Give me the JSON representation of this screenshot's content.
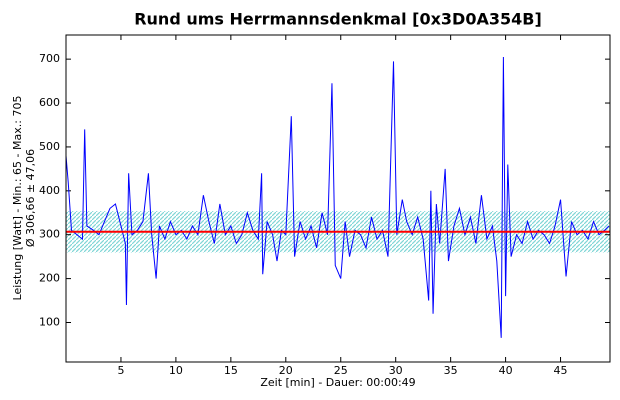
{
  "chart_data": {
    "type": "line",
    "title": "Rund ums Herrmannsdenkmal [0x3D0A354B]",
    "x_label": "Zeit [min] - Dauer: 00:00:49",
    "y_label": "Leistung [Watt] - Min.: 65 - Max.: 705",
    "y_label2": "Ø 306,66 ± 47,06",
    "mean": 306.66,
    "std": 47.06,
    "mean_color": "#ff0000",
    "band_color": "#7fd6d6",
    "color": "#0000ff",
    "xlim": [
      0,
      49.5
    ],
    "ylim": [
      10,
      755
    ],
    "xticks": [
      5,
      10,
      15,
      20,
      25,
      30,
      35,
      40,
      45
    ],
    "yticks": [
      100,
      200,
      300,
      400,
      500,
      600,
      700
    ],
    "x": [
      0,
      0.2,
      0.5,
      1,
      1.5,
      1.7,
      1.9,
      2.5,
      3,
      3.5,
      4,
      4.5,
      5,
      5.4,
      5.5,
      5.7,
      6,
      6.5,
      7,
      7.5,
      7.8,
      8.2,
      8.5,
      9,
      9.5,
      10,
      10.5,
      11,
      11.5,
      12,
      12.5,
      13,
      13.5,
      14,
      14.5,
      15,
      15.5,
      16,
      16.5,
      17,
      17.5,
      17.8,
      17.9,
      18.3,
      18.8,
      19.2,
      19.6,
      20,
      20.5,
      20.8,
      21.3,
      21.8,
      22.3,
      22.8,
      23.3,
      23.8,
      24.2,
      24.5,
      25,
      25.4,
      25.8,
      26.3,
      26.8,
      27.3,
      27.8,
      28.3,
      28.8,
      29.3,
      29.8,
      30.1,
      30.6,
      31,
      31.5,
      32,
      32.5,
      33,
      33.2,
      33.4,
      33.7,
      34,
      34.5,
      34.8,
      35.3,
      35.8,
      36.3,
      36.8,
      37.3,
      37.8,
      38.3,
      38.8,
      39.2,
      39.6,
      39.8,
      40,
      40.2,
      40.5,
      41,
      41.5,
      42,
      42.5,
      43,
      43.5,
      44,
      44.5,
      45,
      45.5,
      46,
      46.5,
      47,
      47.5,
      48,
      48.5,
      49,
      49.4
    ],
    "values": [
      480,
      420,
      310,
      300,
      290,
      540,
      320,
      310,
      300,
      330,
      360,
      370,
      320,
      280,
      140,
      440,
      300,
      310,
      330,
      440,
      300,
      200,
      320,
      290,
      330,
      300,
      310,
      290,
      320,
      300,
      390,
      330,
      280,
      370,
      300,
      320,
      280,
      300,
      350,
      310,
      290,
      440,
      210,
      330,
      300,
      240,
      310,
      300,
      570,
      250,
      330,
      290,
      320,
      270,
      350,
      300,
      645,
      230,
      200,
      330,
      250,
      310,
      300,
      270,
      340,
      290,
      310,
      250,
      695,
      300,
      380,
      330,
      300,
      340,
      290,
      150,
      400,
      120,
      370,
      280,
      450,
      240,
      320,
      360,
      300,
      340,
      280,
      390,
      290,
      320,
      240,
      65,
      705,
      160,
      460,
      250,
      300,
      280,
      330,
      290,
      310,
      300,
      280,
      320,
      380,
      205,
      330,
      300,
      310,
      290,
      330,
      300,
      310,
      320
    ]
  }
}
